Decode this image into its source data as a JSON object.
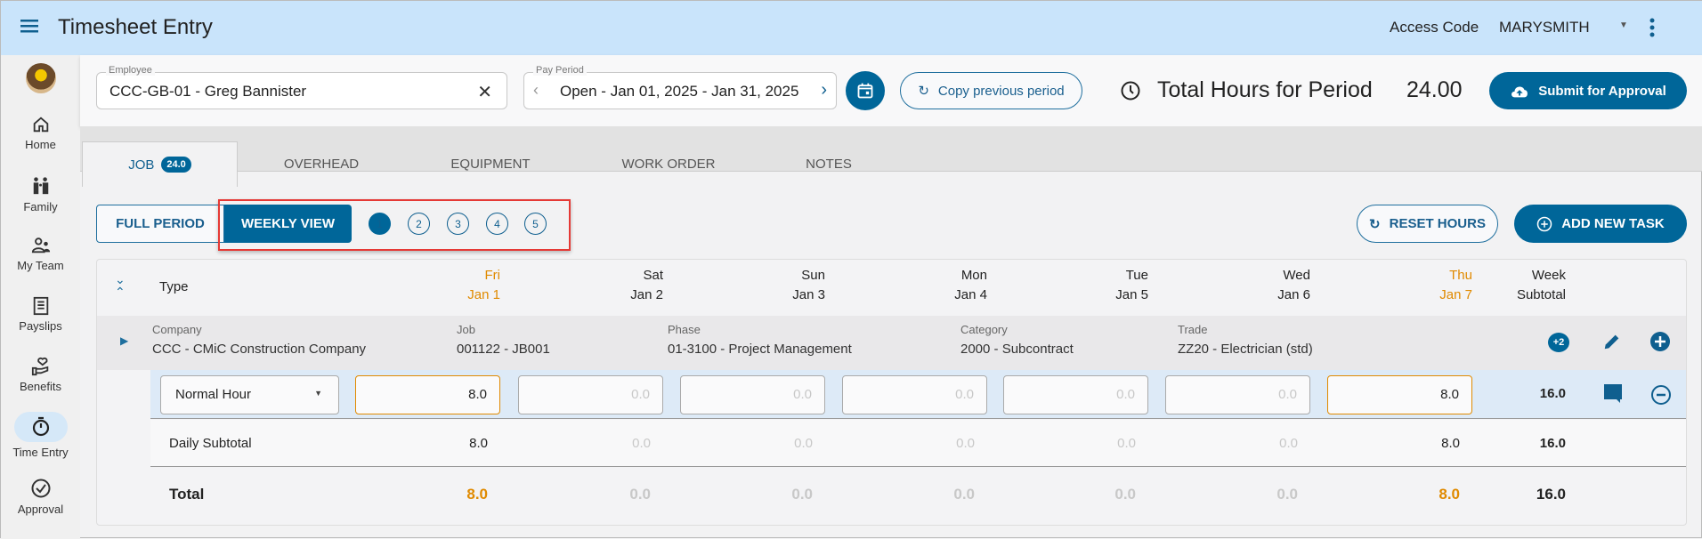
{
  "header": {
    "title": "Timesheet Entry",
    "access_code_label": "Access Code",
    "access_code_value": "MARYSMITH"
  },
  "sidebar": {
    "items": [
      {
        "label": "Home"
      },
      {
        "label": "Family"
      },
      {
        "label": "My Team"
      },
      {
        "label": "Payslips"
      },
      {
        "label": "Benefits"
      },
      {
        "label": "Time Entry",
        "active": true
      },
      {
        "label": "Approval"
      }
    ]
  },
  "filters": {
    "employee_label": "Employee",
    "employee_value": "CCC-GB-01 - Greg Bannister",
    "pay_period_label": "Pay Period",
    "pay_period_value": "Open - Jan 01, 2025 - Jan 31, 2025",
    "copy_previous": "Copy previous period",
    "total_hours_label": "Total Hours for Period",
    "total_hours_value": "24.00",
    "submit": "Submit for Approval"
  },
  "tabs": [
    {
      "label": "JOB",
      "badge": "24.0",
      "active": true
    },
    {
      "label": "OVERHEAD"
    },
    {
      "label": "EQUIPMENT"
    },
    {
      "label": "WORK ORDER"
    },
    {
      "label": "NOTES"
    }
  ],
  "toolbar": {
    "full_period": "FULL PERIOD",
    "weekly_view": "WEEKLY VIEW",
    "weeks": [
      "1",
      "2",
      "3",
      "4",
      "5"
    ],
    "active_week": "1",
    "reset_hours": "RESET HOURS",
    "add_new_task": "ADD NEW TASK"
  },
  "grid": {
    "type_header": "Type",
    "days": [
      {
        "dow": "Fri",
        "date": "Jan 1",
        "highlight": true
      },
      {
        "dow": "Sat",
        "date": "Jan 2"
      },
      {
        "dow": "Sun",
        "date": "Jan 3"
      },
      {
        "dow": "Mon",
        "date": "Jan 4"
      },
      {
        "dow": "Tue",
        "date": "Jan 5"
      },
      {
        "dow": "Wed",
        "date": "Jan 6"
      },
      {
        "dow": "Thu",
        "date": "Jan 7",
        "highlight": true
      }
    ],
    "week_subtotal_header": [
      "Week",
      "Subtotal"
    ],
    "task": {
      "company_label": "Company",
      "company": "CCC - CMiC Construction Company",
      "job_label": "Job",
      "job": "001122 - JB001",
      "phase_label": "Phase",
      "phase": "01-3100 - Project Management",
      "category_label": "Category",
      "category": "2000 - Subcontract",
      "trade_label": "Trade",
      "trade": "ZZ20 - Electrician (std)",
      "more_badge": "+2"
    },
    "entry": {
      "hour_type": "Normal Hour",
      "values": [
        "8.0",
        "0.0",
        "0.0",
        "0.0",
        "0.0",
        "0.0",
        "8.0"
      ],
      "subtotal": "16.0"
    },
    "daily_subtotal": {
      "label": "Daily Subtotal",
      "values": [
        "8.0",
        "0.0",
        "0.0",
        "0.0",
        "0.0",
        "0.0",
        "8.0"
      ],
      "subtotal": "16.0"
    },
    "total": {
      "label": "Total",
      "values": [
        "8.0",
        "0.0",
        "0.0",
        "0.0",
        "0.0",
        "0.0",
        "8.0"
      ],
      "subtotal": "16.0"
    }
  },
  "colors": {
    "accent": "#006699",
    "highlight": "#e08a00",
    "header_bg": "#c9e4fb",
    "annotation": "#e53935"
  }
}
